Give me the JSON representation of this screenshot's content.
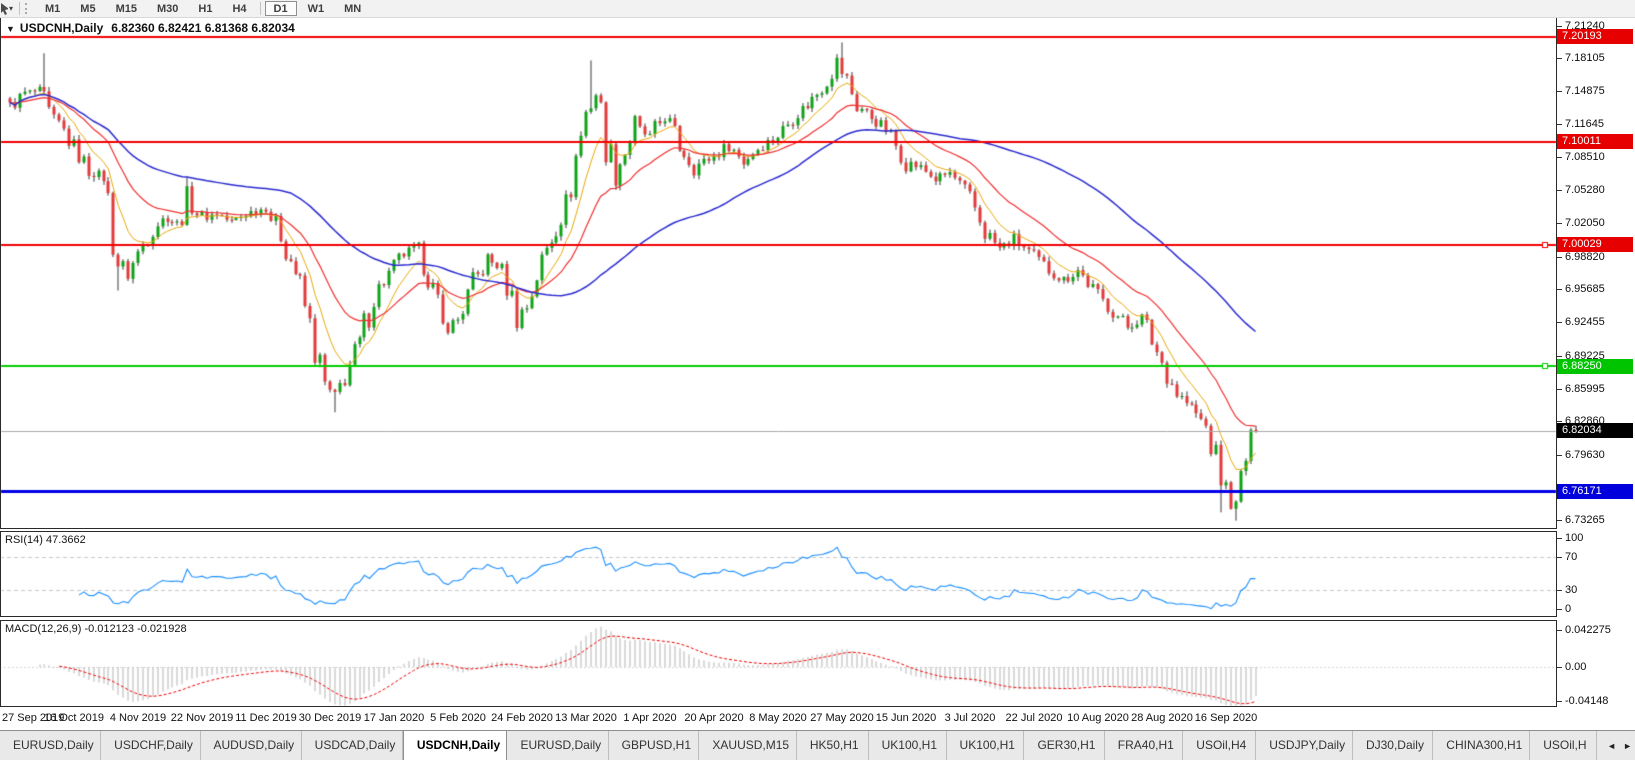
{
  "toolbar": {
    "dropdown_caret": "▾",
    "timeframes": [
      "M1",
      "M5",
      "M15",
      "M30",
      "H1",
      "H4",
      "D1",
      "W1",
      "MN"
    ],
    "active_timeframe": "D1"
  },
  "chart": {
    "menu_icon": "▼",
    "title_symbol": "USDCNH,Daily",
    "title_ohlc": "6.82360 6.82421 6.81368 6.82034",
    "price_axis_ticks": [
      "7.21240",
      "7.18105",
      "7.14875",
      "7.11645",
      "7.08510",
      "7.05280",
      "7.02050",
      "6.98820",
      "6.95685",
      "6.92455",
      "6.89225",
      "6.85995",
      "6.82860",
      "6.79630",
      "6.73265"
    ],
    "hlines": [
      {
        "price": 7.20193,
        "label": "7.20193",
        "color": "#f00000",
        "width": 2,
        "badge": true,
        "badge_bg": "#e60000"
      },
      {
        "price": 7.10011,
        "label": "7.10011",
        "color": "#f00000",
        "width": 2,
        "badge": true,
        "badge_bg": "#e60000"
      },
      {
        "price": 7.00029,
        "label": "7.00029",
        "color": "#f00000",
        "width": 2,
        "badge": true,
        "badge_bg": "#e60000",
        "handle": true
      },
      {
        "price": 6.8825,
        "label": "6.88250",
        "color": "#00ce00",
        "width": 2,
        "badge": true,
        "badge_bg": "#00c400",
        "handle": true
      },
      {
        "price": 6.82034,
        "label": "6.82034",
        "color": "#a9a9a9",
        "width": 1,
        "badge": true,
        "badge_bg": "#000000"
      },
      {
        "price": 6.76171,
        "label": "6.76171",
        "color": "#0000e6",
        "width": 3,
        "badge": true,
        "badge_bg": "#0000dd"
      }
    ],
    "date_labels": [
      "27 Sep 2019",
      "16 Oct 2019",
      "4 Nov 2019",
      "22 Nov 2019",
      "11 Dec 2019",
      "30 Dec 2019",
      "17 Jan 2020",
      "5 Feb 2020",
      "24 Feb 2020",
      "13 Mar 2020",
      "1 Apr 2020",
      "20 Apr 2020",
      "8 May 2020",
      "27 May 2020",
      "15 Jun 2020",
      "3 Jul 2020",
      "22 Jul 2020",
      "10 Aug 2020",
      "28 Aug 2020",
      "16 Sep 2020"
    ]
  },
  "rsi": {
    "label": "RSI(14) 47.3662",
    "period": 14,
    "value": 47.3662,
    "levels": [
      70,
      30
    ],
    "ticks": [
      {
        "label": "100",
        "v": 100
      },
      {
        "label": "70",
        "v": 70
      },
      {
        "label": "30",
        "v": 30
      },
      {
        "label": "0",
        "v": 0
      }
    ]
  },
  "macd": {
    "label": "MACD(12,26,9) -0.012123 -0.021928",
    "main": -0.012123,
    "signal": -0.021928,
    "ticks": [
      {
        "label": "0.042275",
        "v": 0.042275
      },
      {
        "label": "0.00",
        "v": 0
      },
      {
        "label": "-0.04148",
        "v": -0.04148
      }
    ]
  },
  "tabs": {
    "active_index": 4,
    "scroll_left": "◄",
    "scroll_right": "►",
    "items": [
      {
        "label": "EURUSD,Daily"
      },
      {
        "label": "USDCHF,Daily"
      },
      {
        "label": "AUDUSD,Daily"
      },
      {
        "label": "USDCAD,Daily"
      },
      {
        "label": "USDCNH,Daily"
      },
      {
        "label": "EURUSD,Daily"
      },
      {
        "label": "GBPUSD,H1"
      },
      {
        "label": "XAUUSD,M15"
      },
      {
        "label": "HK50,H1"
      },
      {
        "label": "UK100,H1"
      },
      {
        "label": "UK100,H1"
      },
      {
        "label": "GER30,H1"
      },
      {
        "label": "FRA40,H1"
      },
      {
        "label": "USOil,H4"
      },
      {
        "label": "USDJPY,Daily"
      },
      {
        "label": "DJ30,Daily"
      },
      {
        "label": "CHINA300,H1"
      },
      {
        "label": "USOil,H"
      }
    ]
  },
  "chart_data": {
    "type": "candlestick",
    "symbol": "USDCNH",
    "timeframe": "Daily",
    "title": "USDCNH,Daily",
    "current": {
      "open": 6.8236,
      "high": 6.82421,
      "low": 6.81368,
      "close": 6.82034
    },
    "y_axis_ticks": [
      7.2124,
      7.18105,
      7.14875,
      7.11645,
      7.0851,
      7.0528,
      7.0205,
      6.9882,
      6.95685,
      6.92455,
      6.89225,
      6.85995,
      6.8286,
      6.7963,
      6.73265
    ],
    "horizontal_levels": [
      7.20193,
      7.10011,
      7.00029,
      6.8825,
      6.82034,
      6.76171
    ],
    "x_labels": [
      "27 Sep 2019",
      "16 Oct 2019",
      "4 Nov 2019",
      "22 Nov 2019",
      "11 Dec 2019",
      "30 Dec 2019",
      "17 Jan 2020",
      "5 Feb 2020",
      "24 Feb 2020",
      "13 Mar 2020",
      "1 Apr 2020",
      "20 Apr 2020",
      "8 May 2020",
      "27 May 2020",
      "15 Jun 2020",
      "3 Jul 2020",
      "22 Jul 2020",
      "10 Aug 2020",
      "28 Aug 2020",
      "16 Sep 2020"
    ],
    "candles_per_label": 13,
    "close_anchors": [
      [
        0,
        7.134
      ],
      [
        3,
        7.147
      ],
      [
        6,
        7.15
      ],
      [
        8,
        7.125
      ],
      [
        10,
        7.118
      ],
      [
        13,
        7.094
      ],
      [
        16,
        7.073
      ],
      [
        19,
        7.065
      ],
      [
        22,
        6.985
      ],
      [
        24,
        6.972
      ],
      [
        26,
        6.992
      ],
      [
        29,
        7.017
      ],
      [
        32,
        7.028
      ],
      [
        34,
        7.02
      ],
      [
        36,
        7.044
      ],
      [
        39,
        7.026
      ],
      [
        42,
        7.031
      ],
      [
        45,
        7.022
      ],
      [
        48,
        7.031
      ],
      [
        52,
        7.036
      ],
      [
        55,
        7.01
      ],
      [
        58,
        6.974
      ],
      [
        60,
        6.94
      ],
      [
        62,
        6.9
      ],
      [
        64,
        6.862
      ],
      [
        66,
        6.852
      ],
      [
        68,
        6.873
      ],
      [
        71,
        6.905
      ],
      [
        74,
        6.952
      ],
      [
        77,
        6.972
      ],
      [
        80,
        6.992
      ],
      [
        83,
        6.998
      ],
      [
        85,
        6.972
      ],
      [
        88,
        6.917
      ],
      [
        91,
        6.928
      ],
      [
        94,
        6.962
      ],
      [
        97,
        6.985
      ],
      [
        100,
        6.978
      ],
      [
        103,
        6.933
      ],
      [
        105,
        6.94
      ],
      [
        107,
        6.972
      ],
      [
        110,
        7.008
      ],
      [
        113,
        7.04
      ],
      [
        115,
        7.085
      ],
      [
        117,
        7.128
      ],
      [
        119,
        7.148
      ],
      [
        121,
        7.102
      ],
      [
        123,
        7.072
      ],
      [
        125,
        7.09
      ],
      [
        127,
        7.115
      ],
      [
        130,
        7.104
      ],
      [
        133,
        7.126
      ],
      [
        136,
        7.096
      ],
      [
        139,
        7.076
      ],
      [
        143,
        7.086
      ],
      [
        146,
        7.097
      ],
      [
        149,
        7.081
      ],
      [
        152,
        7.094
      ],
      [
        156,
        7.106
      ],
      [
        159,
        7.124
      ],
      [
        162,
        7.136
      ],
      [
        165,
        7.153
      ],
      [
        168,
        7.177
      ],
      [
        170,
        7.16
      ],
      [
        172,
        7.136
      ],
      [
        175,
        7.124
      ],
      [
        178,
        7.112
      ],
      [
        182,
        7.081
      ],
      [
        185,
        7.075
      ],
      [
        188,
        7.064
      ],
      [
        191,
        7.07
      ],
      [
        195,
        7.046
      ],
      [
        198,
        7.014
      ],
      [
        201,
        6.996
      ],
      [
        204,
        7.006
      ],
      [
        208,
        6.989
      ],
      [
        211,
        6.976
      ],
      [
        214,
        6.966
      ],
      [
        217,
        6.976
      ],
      [
        221,
        6.951
      ],
      [
        224,
        6.936
      ],
      [
        227,
        6.921
      ],
      [
        230,
        6.93
      ],
      [
        234,
        6.886
      ],
      [
        237,
        6.857
      ],
      [
        240,
        6.842
      ],
      [
        243,
        6.824
      ],
      [
        245,
        6.792
      ],
      [
        247,
        6.76
      ],
      [
        249,
        6.745
      ],
      [
        251,
        6.795
      ],
      [
        253,
        6.8203
      ]
    ],
    "extremes": [
      {
        "i": 7,
        "h": 7.186
      },
      {
        "i": 22,
        "l": 6.956
      },
      {
        "i": 36,
        "h": 7.066
      },
      {
        "i": 66,
        "l": 6.838
      },
      {
        "i": 118,
        "h": 7.179
      },
      {
        "i": 169,
        "h": 7.1965
      },
      {
        "i": 246,
        "l": 6.741
      },
      {
        "i": 249,
        "l": 6.733
      }
    ],
    "indicators": {
      "ma_fast": {
        "type": "ema",
        "period": 8,
        "color": "#e8a70c"
      },
      "ma_mid": {
        "type": "ema",
        "period": 21,
        "color": "#f03030"
      },
      "ma_slow": {
        "type": "sma",
        "period": 58,
        "color": "#2b2bd0"
      },
      "rsi": {
        "period": 14,
        "last": 47.3662,
        "scale": [
          0,
          100
        ],
        "levels": [
          30,
          70
        ]
      },
      "macd": {
        "fast": 12,
        "slow": 26,
        "signal": 9,
        "last_main": -0.012123,
        "last_signal": -0.021928,
        "scale_top": 0.042275,
        "scale_bottom": -0.04148
      }
    }
  }
}
